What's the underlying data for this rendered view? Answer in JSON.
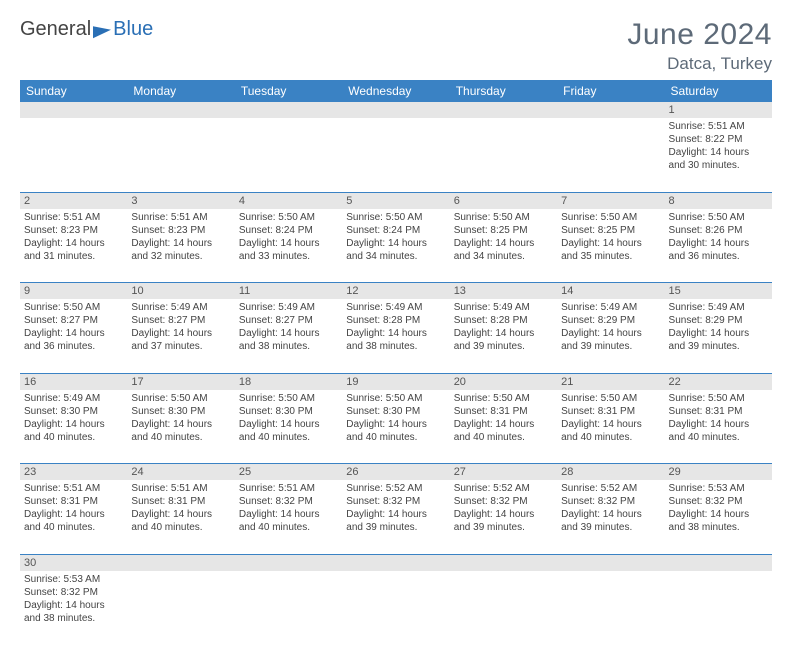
{
  "brand": {
    "word1": "General",
    "word2": "Blue"
  },
  "title": "June 2024",
  "location": "Datca, Turkey",
  "colors": {
    "header_bg": "#3a82c4",
    "header_text": "#ffffff",
    "daynum_bg": "#e6e6e6",
    "border": "#3a82c4",
    "title_color": "#5d6a78"
  },
  "weekdays": [
    "Sunday",
    "Monday",
    "Tuesday",
    "Wednesday",
    "Thursday",
    "Friday",
    "Saturday"
  ],
  "weeks": [
    [
      null,
      null,
      null,
      null,
      null,
      null,
      {
        "n": "1",
        "sr": "Sunrise: 5:51 AM",
        "ss": "Sunset: 8:22 PM",
        "d1": "Daylight: 14 hours",
        "d2": "and 30 minutes."
      }
    ],
    [
      {
        "n": "2",
        "sr": "Sunrise: 5:51 AM",
        "ss": "Sunset: 8:23 PM",
        "d1": "Daylight: 14 hours",
        "d2": "and 31 minutes."
      },
      {
        "n": "3",
        "sr": "Sunrise: 5:51 AM",
        "ss": "Sunset: 8:23 PM",
        "d1": "Daylight: 14 hours",
        "d2": "and 32 minutes."
      },
      {
        "n": "4",
        "sr": "Sunrise: 5:50 AM",
        "ss": "Sunset: 8:24 PM",
        "d1": "Daylight: 14 hours",
        "d2": "and 33 minutes."
      },
      {
        "n": "5",
        "sr": "Sunrise: 5:50 AM",
        "ss": "Sunset: 8:24 PM",
        "d1": "Daylight: 14 hours",
        "d2": "and 34 minutes."
      },
      {
        "n": "6",
        "sr": "Sunrise: 5:50 AM",
        "ss": "Sunset: 8:25 PM",
        "d1": "Daylight: 14 hours",
        "d2": "and 34 minutes."
      },
      {
        "n": "7",
        "sr": "Sunrise: 5:50 AM",
        "ss": "Sunset: 8:25 PM",
        "d1": "Daylight: 14 hours",
        "d2": "and 35 minutes."
      },
      {
        "n": "8",
        "sr": "Sunrise: 5:50 AM",
        "ss": "Sunset: 8:26 PM",
        "d1": "Daylight: 14 hours",
        "d2": "and 36 minutes."
      }
    ],
    [
      {
        "n": "9",
        "sr": "Sunrise: 5:50 AM",
        "ss": "Sunset: 8:27 PM",
        "d1": "Daylight: 14 hours",
        "d2": "and 36 minutes."
      },
      {
        "n": "10",
        "sr": "Sunrise: 5:49 AM",
        "ss": "Sunset: 8:27 PM",
        "d1": "Daylight: 14 hours",
        "d2": "and 37 minutes."
      },
      {
        "n": "11",
        "sr": "Sunrise: 5:49 AM",
        "ss": "Sunset: 8:27 PM",
        "d1": "Daylight: 14 hours",
        "d2": "and 38 minutes."
      },
      {
        "n": "12",
        "sr": "Sunrise: 5:49 AM",
        "ss": "Sunset: 8:28 PM",
        "d1": "Daylight: 14 hours",
        "d2": "and 38 minutes."
      },
      {
        "n": "13",
        "sr": "Sunrise: 5:49 AM",
        "ss": "Sunset: 8:28 PM",
        "d1": "Daylight: 14 hours",
        "d2": "and 39 minutes."
      },
      {
        "n": "14",
        "sr": "Sunrise: 5:49 AM",
        "ss": "Sunset: 8:29 PM",
        "d1": "Daylight: 14 hours",
        "d2": "and 39 minutes."
      },
      {
        "n": "15",
        "sr": "Sunrise: 5:49 AM",
        "ss": "Sunset: 8:29 PM",
        "d1": "Daylight: 14 hours",
        "d2": "and 39 minutes."
      }
    ],
    [
      {
        "n": "16",
        "sr": "Sunrise: 5:49 AM",
        "ss": "Sunset: 8:30 PM",
        "d1": "Daylight: 14 hours",
        "d2": "and 40 minutes."
      },
      {
        "n": "17",
        "sr": "Sunrise: 5:50 AM",
        "ss": "Sunset: 8:30 PM",
        "d1": "Daylight: 14 hours",
        "d2": "and 40 minutes."
      },
      {
        "n": "18",
        "sr": "Sunrise: 5:50 AM",
        "ss": "Sunset: 8:30 PM",
        "d1": "Daylight: 14 hours",
        "d2": "and 40 minutes."
      },
      {
        "n": "19",
        "sr": "Sunrise: 5:50 AM",
        "ss": "Sunset: 8:30 PM",
        "d1": "Daylight: 14 hours",
        "d2": "and 40 minutes."
      },
      {
        "n": "20",
        "sr": "Sunrise: 5:50 AM",
        "ss": "Sunset: 8:31 PM",
        "d1": "Daylight: 14 hours",
        "d2": "and 40 minutes."
      },
      {
        "n": "21",
        "sr": "Sunrise: 5:50 AM",
        "ss": "Sunset: 8:31 PM",
        "d1": "Daylight: 14 hours",
        "d2": "and 40 minutes."
      },
      {
        "n": "22",
        "sr": "Sunrise: 5:50 AM",
        "ss": "Sunset: 8:31 PM",
        "d1": "Daylight: 14 hours",
        "d2": "and 40 minutes."
      }
    ],
    [
      {
        "n": "23",
        "sr": "Sunrise: 5:51 AM",
        "ss": "Sunset: 8:31 PM",
        "d1": "Daylight: 14 hours",
        "d2": "and 40 minutes."
      },
      {
        "n": "24",
        "sr": "Sunrise: 5:51 AM",
        "ss": "Sunset: 8:31 PM",
        "d1": "Daylight: 14 hours",
        "d2": "and 40 minutes."
      },
      {
        "n": "25",
        "sr": "Sunrise: 5:51 AM",
        "ss": "Sunset: 8:32 PM",
        "d1": "Daylight: 14 hours",
        "d2": "and 40 minutes."
      },
      {
        "n": "26",
        "sr": "Sunrise: 5:52 AM",
        "ss": "Sunset: 8:32 PM",
        "d1": "Daylight: 14 hours",
        "d2": "and 39 minutes."
      },
      {
        "n": "27",
        "sr": "Sunrise: 5:52 AM",
        "ss": "Sunset: 8:32 PM",
        "d1": "Daylight: 14 hours",
        "d2": "and 39 minutes."
      },
      {
        "n": "28",
        "sr": "Sunrise: 5:52 AM",
        "ss": "Sunset: 8:32 PM",
        "d1": "Daylight: 14 hours",
        "d2": "and 39 minutes."
      },
      {
        "n": "29",
        "sr": "Sunrise: 5:53 AM",
        "ss": "Sunset: 8:32 PM",
        "d1": "Daylight: 14 hours",
        "d2": "and 38 minutes."
      }
    ],
    [
      {
        "n": "30",
        "sr": "Sunrise: 5:53 AM",
        "ss": "Sunset: 8:32 PM",
        "d1": "Daylight: 14 hours",
        "d2": "and 38 minutes."
      },
      null,
      null,
      null,
      null,
      null,
      null
    ]
  ]
}
